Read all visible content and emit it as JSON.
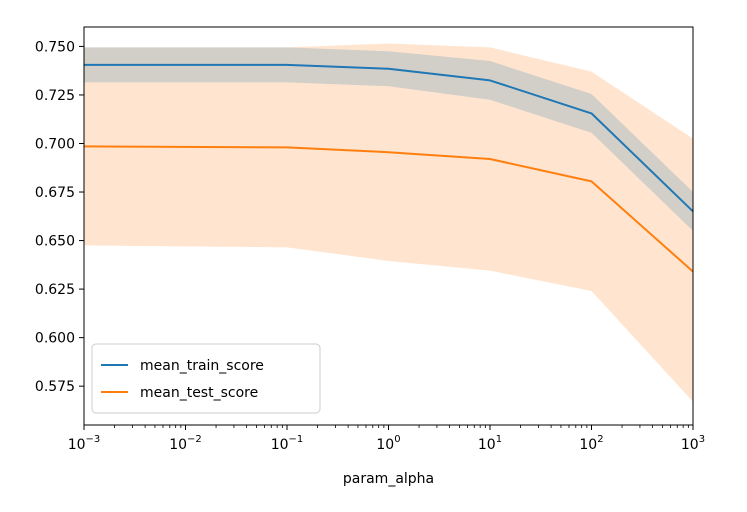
{
  "chart_data": {
    "type": "line",
    "title": "",
    "xlabel": "param_alpha",
    "ylabel": "",
    "x_scale": "log",
    "x": [
      0.001,
      0.1,
      1,
      10,
      100,
      1000
    ],
    "xlim": [
      0.001,
      1000
    ],
    "ylim": [
      0.555,
      0.76
    ],
    "x_ticks": [
      {
        "value": 0.001,
        "base": "10",
        "exp": "−3"
      },
      {
        "value": 0.01,
        "base": "10",
        "exp": "−2"
      },
      {
        "value": 0.1,
        "base": "10",
        "exp": "−1"
      },
      {
        "value": 1,
        "base": "10",
        "exp": "0"
      },
      {
        "value": 10,
        "base": "10",
        "exp": "1"
      },
      {
        "value": 100,
        "base": "10",
        "exp": "2"
      },
      {
        "value": 1000,
        "base": "10",
        "exp": "3"
      }
    ],
    "y_ticks": [
      {
        "value": 0.575,
        "label": "0.575"
      },
      {
        "value": 0.6,
        "label": "0.600"
      },
      {
        "value": 0.625,
        "label": "0.625"
      },
      {
        "value": 0.65,
        "label": "0.650"
      },
      {
        "value": 0.675,
        "label": "0.675"
      },
      {
        "value": 0.7,
        "label": "0.700"
      },
      {
        "value": 0.725,
        "label": "0.725"
      },
      {
        "value": 0.75,
        "label": "0.750"
      }
    ],
    "grid": false,
    "legend_position": "lower-left",
    "series": [
      {
        "name": "mean_train_score",
        "color": "#1f77b4",
        "band_color": "#1f77b4",
        "values": [
          0.7405,
          0.7405,
          0.7385,
          0.7325,
          0.7155,
          0.665
        ],
        "lower": [
          0.7315,
          0.7315,
          0.7295,
          0.7225,
          0.7055,
          0.655
        ],
        "upper": [
          0.7495,
          0.7495,
          0.7475,
          0.7425,
          0.7255,
          0.675
        ]
      },
      {
        "name": "mean_test_score",
        "color": "#ff7f0e",
        "band_color": "#ff7f0e",
        "values": [
          0.6985,
          0.698,
          0.6955,
          0.692,
          0.6805,
          0.634
        ],
        "lower": [
          0.6475,
          0.6465,
          0.6395,
          0.6345,
          0.624,
          0.567
        ],
        "upper": [
          0.7495,
          0.7495,
          0.7515,
          0.7495,
          0.737,
          0.7025
        ]
      }
    ]
  }
}
